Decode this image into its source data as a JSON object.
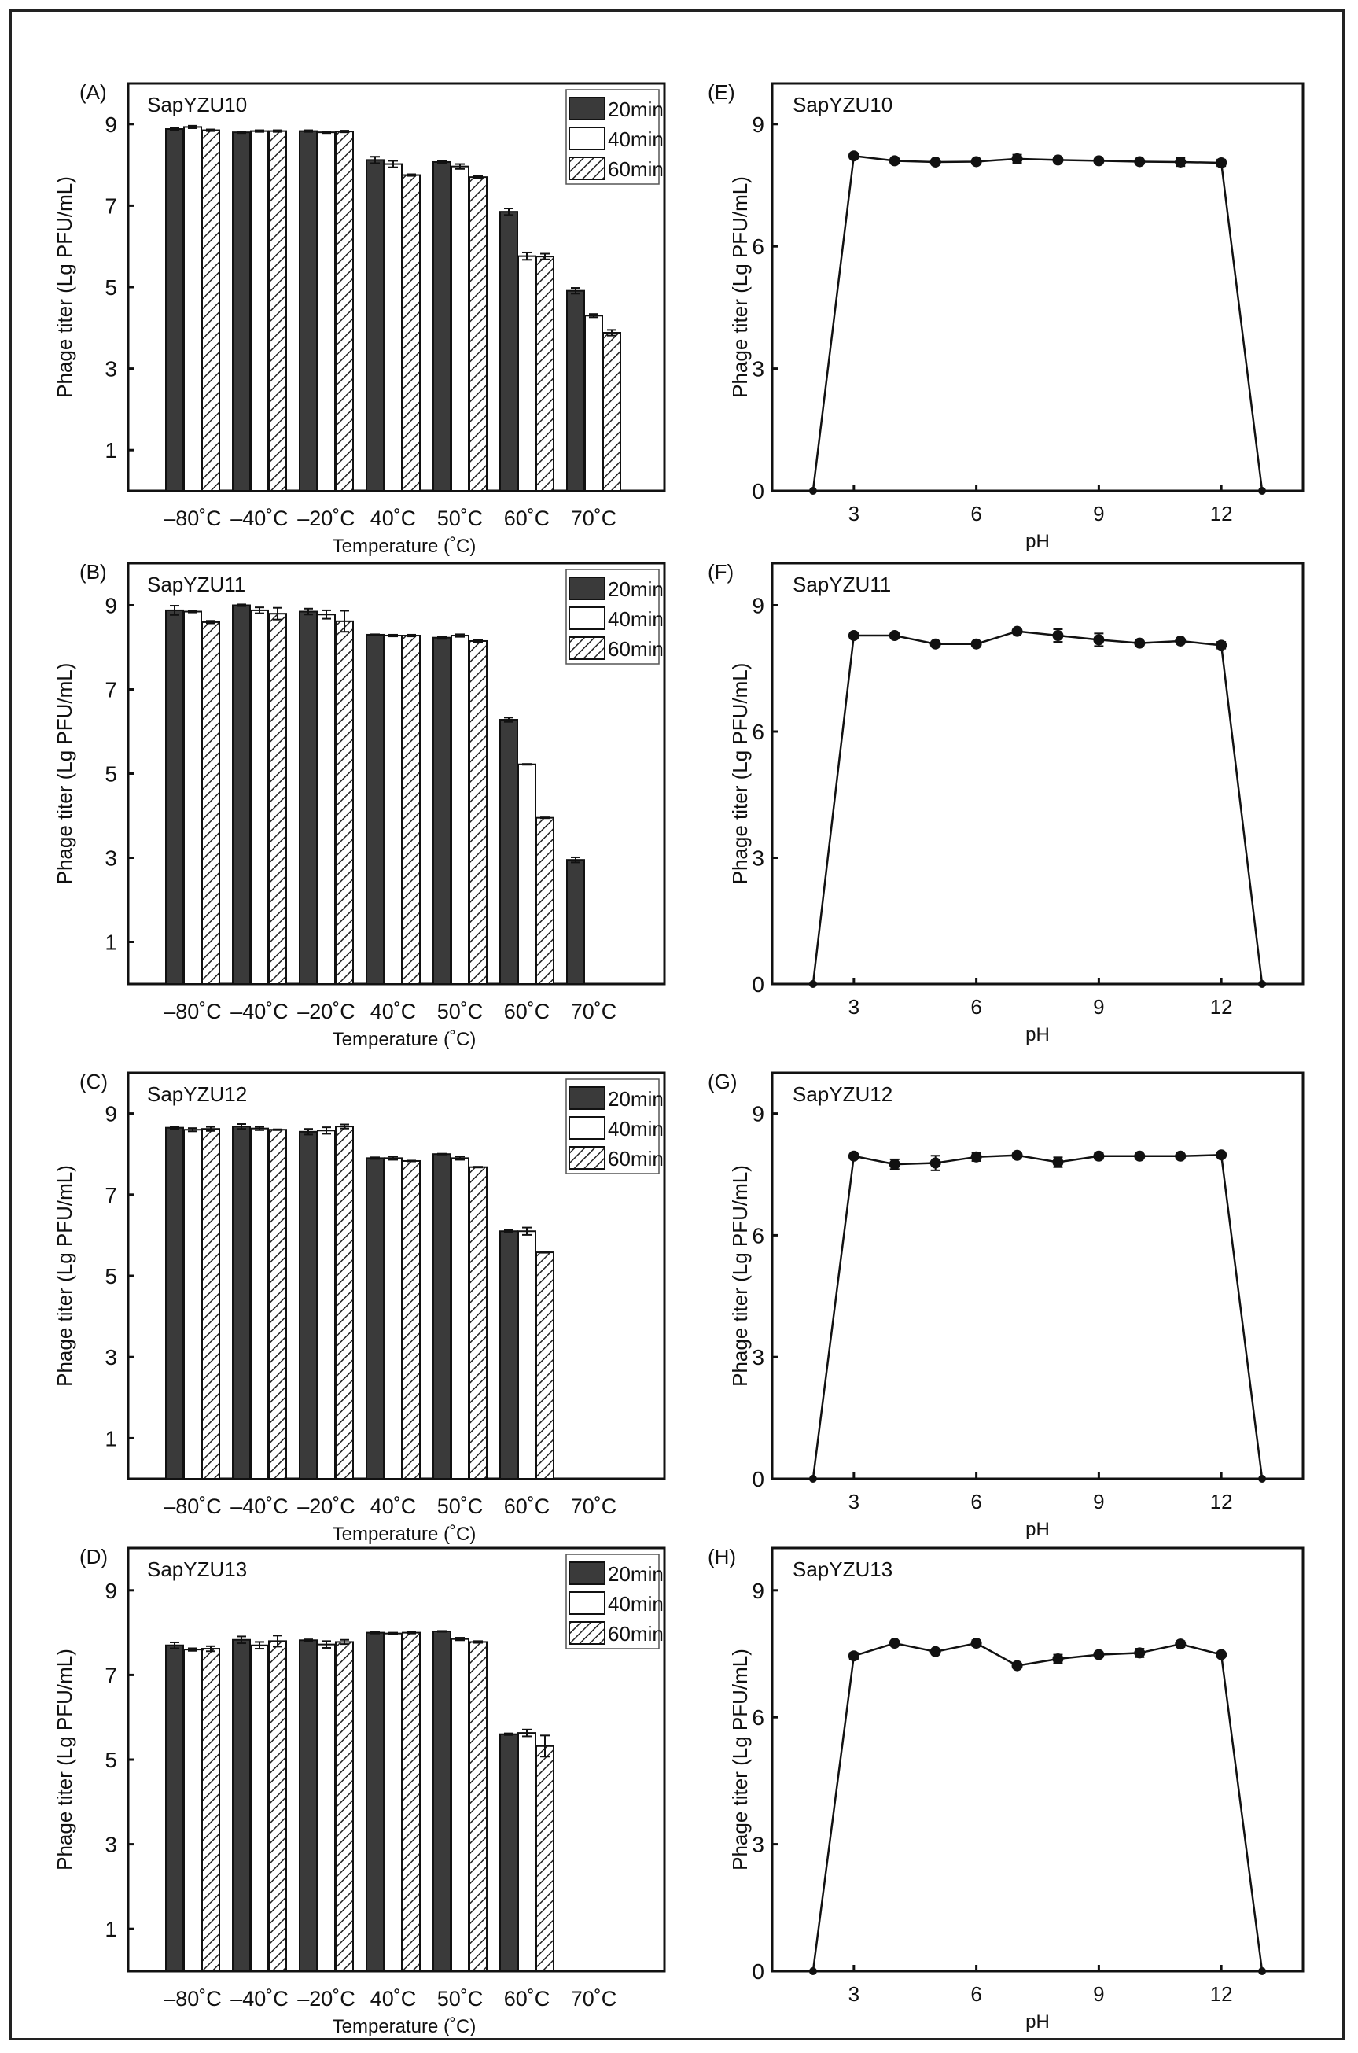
{
  "chart_data": [
    {
      "panel": "(A)",
      "type": "bar",
      "title": "SapYZU10",
      "xlabel": "Temperature (˚C)",
      "ylabel": "Phage titer (Lg PFU/mL)",
      "categories": [
        "–80˚C",
        "–40˚C",
        "–20˚C",
        "40˚C",
        "50˚C",
        "60˚C",
        "70˚C"
      ],
      "yticks": [
        1,
        3,
        5,
        7,
        9
      ],
      "ylim": [
        0,
        10
      ],
      "legend_position": "top-right",
      "series": [
        {
          "name": "20min",
          "values": [
            8.88,
            8.8,
            8.83,
            8.12,
            8.07,
            6.85,
            4.91
          ],
          "errors": [
            0.02,
            0.02,
            0.02,
            0.08,
            0.03,
            0.08,
            0.07
          ]
        },
        {
          "name": "40min",
          "values": [
            8.93,
            8.83,
            8.8,
            8.02,
            7.96,
            5.76,
            4.3
          ],
          "errors": [
            0.03,
            0.02,
            0.02,
            0.08,
            0.06,
            0.09,
            0.04
          ]
        },
        {
          "name": "60min",
          "values": [
            8.85,
            8.83,
            8.82,
            7.75,
            7.7,
            5.75,
            3.88
          ],
          "errors": [
            0.02,
            0.02,
            0.02,
            0.02,
            0.03,
            0.07,
            0.07
          ]
        }
      ]
    },
    {
      "panel": "(B)",
      "type": "bar",
      "title": "SapYZU11",
      "xlabel": "Temperature (˚C)",
      "ylabel": "Phage titer (Lg PFU/mL)",
      "categories": [
        "–80˚C",
        "–40˚C",
        "–20˚C",
        "40˚C",
        "50˚C",
        "60˚C",
        "70˚C"
      ],
      "yticks": [
        1,
        3,
        5,
        7,
        9
      ],
      "ylim": [
        0,
        10
      ],
      "legend_position": "top-right",
      "series": [
        {
          "name": "20min",
          "values": [
            8.88,
            9.0,
            8.85,
            8.3,
            8.23,
            6.28,
            2.95
          ],
          "errors": [
            0.11,
            0.02,
            0.07,
            0.01,
            0.03,
            0.05,
            0.06
          ]
        },
        {
          "name": "40min",
          "values": [
            8.85,
            8.88,
            8.78,
            8.28,
            8.28,
            5.22,
            0
          ],
          "errors": [
            0.02,
            0.07,
            0.1,
            0.02,
            0.03,
            0.01,
            0
          ]
        },
        {
          "name": "60min",
          "values": [
            8.6,
            8.8,
            8.62,
            8.28,
            8.15,
            3.95,
            0
          ],
          "errors": [
            0.03,
            0.14,
            0.25,
            0.02,
            0.03,
            0.01,
            0
          ]
        }
      ]
    },
    {
      "panel": "(C)",
      "type": "bar",
      "title": "SapYZU12",
      "xlabel": "Temperature (˚C)",
      "ylabel": "Phage titer (Lg PFU/mL)",
      "categories": [
        "–80˚C",
        "–40˚C",
        "–20˚C",
        "40˚C",
        "50˚C",
        "60˚C",
        "70˚C"
      ],
      "yticks": [
        1,
        3,
        5,
        7,
        9
      ],
      "ylim": [
        0,
        10
      ],
      "legend_position": "top-right",
      "series": [
        {
          "name": "20min",
          "values": [
            8.65,
            8.68,
            8.55,
            7.9,
            8.0,
            6.1,
            0
          ],
          "errors": [
            0.03,
            0.06,
            0.07,
            0.02,
            0.01,
            0.03,
            0
          ]
        },
        {
          "name": "40min",
          "values": [
            8.6,
            8.63,
            8.58,
            7.9,
            7.9,
            6.1,
            0
          ],
          "errors": [
            0.04,
            0.04,
            0.08,
            0.04,
            0.04,
            0.09,
            0
          ]
        },
        {
          "name": "60min",
          "values": [
            8.62,
            8.6,
            8.68,
            7.83,
            7.68,
            5.58,
            0
          ],
          "errors": [
            0.05,
            0.01,
            0.05,
            0.01,
            0.01,
            0.01,
            0
          ]
        }
      ]
    },
    {
      "panel": "(D)",
      "type": "bar",
      "title": "SapYZU13",
      "xlabel": "Temperature (˚C)",
      "ylabel": "Phage titer (Lg PFU/mL)",
      "categories": [
        "–80˚C",
        "–40˚C",
        "–20˚C",
        "40˚C",
        "50˚C",
        "60˚C",
        "70˚C"
      ],
      "yticks": [
        1,
        3,
        5,
        7,
        9
      ],
      "ylim": [
        0,
        10
      ],
      "legend_position": "top-right",
      "series": [
        {
          "name": "20min",
          "values": [
            7.7,
            7.83,
            7.82,
            8.0,
            8.03,
            5.6,
            0
          ],
          "errors": [
            0.07,
            0.08,
            0.02,
            0.02,
            0.01,
            0.02,
            0
          ]
        },
        {
          "name": "40min",
          "values": [
            7.6,
            7.7,
            7.72,
            7.98,
            7.85,
            5.63,
            0
          ],
          "errors": [
            0.03,
            0.08,
            0.08,
            0.02,
            0.03,
            0.08,
            0
          ]
        },
        {
          "name": "60min",
          "values": [
            7.62,
            7.8,
            7.78,
            8.0,
            7.78,
            5.32,
            0
          ],
          "errors": [
            0.06,
            0.13,
            0.05,
            0.02,
            0.02,
            0.25,
            0
          ]
        }
      ]
    },
    {
      "panel": "(E)",
      "type": "line",
      "title": "SapYZU10",
      "xlabel": "pH",
      "ylabel": "Phage titer (Lg PFU/mL)",
      "xticks": [
        3,
        6,
        9,
        12
      ],
      "yticks": [
        0,
        3,
        6,
        9
      ],
      "xlim": [
        1,
        14
      ],
      "ylim": [
        0,
        10
      ],
      "x": [
        2,
        3,
        4,
        5,
        6,
        7,
        8,
        9,
        10,
        11,
        12,
        13
      ],
      "values": [
        0,
        8.22,
        8.1,
        8.07,
        8.08,
        8.15,
        8.12,
        8.1,
        8.08,
        8.07,
        8.05,
        0
      ],
      "errors": [
        0,
        0.05,
        0.05,
        0.05,
        0.05,
        0.1,
        0.05,
        0.05,
        0.05,
        0.1,
        0.08,
        0
      ]
    },
    {
      "panel": "(F)",
      "type": "line",
      "title": "SapYZU11",
      "xlabel": "pH",
      "ylabel": "Phage titer (Lg PFU/mL)",
      "xticks": [
        3,
        6,
        9,
        12
      ],
      "yticks": [
        0,
        3,
        6,
        9
      ],
      "xlim": [
        1,
        14
      ],
      "ylim": [
        0,
        10
      ],
      "x": [
        2,
        3,
        4,
        5,
        6,
        7,
        8,
        9,
        10,
        11,
        12,
        13
      ],
      "values": [
        0,
        8.28,
        8.28,
        8.08,
        8.08,
        8.38,
        8.28,
        8.18,
        8.1,
        8.15,
        8.05,
        0
      ],
      "errors": [
        0,
        0.05,
        0.05,
        0.05,
        0.05,
        0.05,
        0.15,
        0.15,
        0.05,
        0.05,
        0.08,
        0
      ]
    },
    {
      "panel": "(G)",
      "type": "line",
      "title": "SapYZU12",
      "xlabel": "pH",
      "ylabel": "Phage titer (Lg PFU/mL)",
      "xticks": [
        3,
        6,
        9,
        12
      ],
      "yticks": [
        0,
        3,
        6,
        9
      ],
      "xlim": [
        1,
        14
      ],
      "ylim": [
        0,
        10
      ],
      "x": [
        2,
        3,
        4,
        5,
        6,
        7,
        8,
        9,
        10,
        11,
        12,
        13
      ],
      "values": [
        0,
        7.95,
        7.75,
        7.78,
        7.93,
        7.97,
        7.8,
        7.95,
        7.95,
        7.95,
        7.98,
        0
      ],
      "errors": [
        0,
        0.03,
        0.12,
        0.18,
        0.1,
        0.05,
        0.12,
        0.07,
        0.03,
        0.05,
        0.03,
        0
      ]
    },
    {
      "panel": "(H)",
      "type": "line",
      "title": "SapYZU13",
      "xlabel": "pH",
      "ylabel": "Phage titer (Lg PFU/mL)",
      "xticks": [
        3,
        6,
        9,
        12
      ],
      "yticks": [
        0,
        3,
        6,
        9
      ],
      "xlim": [
        1,
        14
      ],
      "ylim": [
        0,
        10
      ],
      "x": [
        2,
        3,
        4,
        5,
        6,
        7,
        8,
        9,
        10,
        11,
        12,
        13
      ],
      "values": [
        0,
        7.45,
        7.75,
        7.55,
        7.75,
        7.22,
        7.38,
        7.48,
        7.52,
        7.73,
        7.48,
        0
      ],
      "errors": [
        0,
        0.07,
        0.05,
        0.04,
        0.07,
        0.05,
        0.1,
        0.05,
        0.1,
        0.07,
        0.05,
        0
      ]
    }
  ],
  "colors": {
    "bar_20min": "#3a3a3a",
    "bar_40min": "#ffffff",
    "bar_60min_hatch": "#222222",
    "line": "#111111"
  }
}
